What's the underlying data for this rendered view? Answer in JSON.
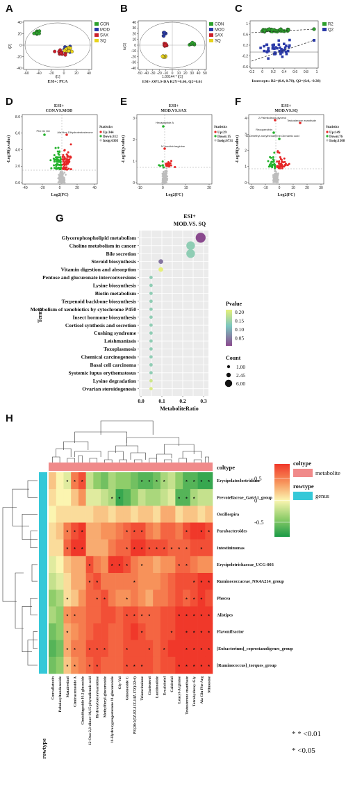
{
  "panels": {
    "A": {
      "label": "A",
      "xlabel": "t[1]",
      "ylabel": "t[2]",
      "footer": "ESI+: PCA",
      "yticks": [
        "40",
        "20",
        "0",
        "-20",
        "-40"
      ],
      "xticks": [
        "-60",
        "-40",
        "-20",
        "0",
        "20",
        "40"
      ],
      "legend": [
        {
          "name": "CON",
          "color": "#2ca02c"
        },
        {
          "name": "MOD",
          "color": "#2b3aa8"
        },
        {
          "name": "SAX",
          "color": "#cc1f2a"
        },
        {
          "name": "SQ",
          "color": "#e8d31a"
        }
      ]
    },
    "B": {
      "label": "B",
      "xlabel": "1.00144 * t[1]",
      "ylabel": "to[1]",
      "footer": "ESI+:OPLS-DA   R2Y=0.66, Q2=0.61",
      "yticks": [
        "40",
        "30",
        "20",
        "10",
        "0",
        "-10",
        "-20",
        "-30",
        "-40"
      ],
      "xticks": [
        "-50",
        "-40",
        "-30",
        "-20",
        "-10",
        "0",
        "10",
        "20",
        "30",
        "40",
        "50"
      ],
      "legend": [
        {
          "name": "CON",
          "color": "#2ca02c"
        },
        {
          "name": "MOD",
          "color": "#2b3aa8"
        },
        {
          "name": "SAX",
          "color": "#cc1f2a"
        },
        {
          "name": "SQ",
          "color": "#e8d31a"
        }
      ]
    },
    "C": {
      "label": "C",
      "footer": "Intercepts: R2=(0.0, 0.70), Q2=(0.0, -0.38)",
      "yticks": [
        "1",
        "0.6",
        "0.2",
        "-0.2",
        "-0.6"
      ],
      "xticks": [
        "-0.2",
        "0",
        "0.2",
        "0.4",
        "0.6",
        "0.8",
        "1"
      ],
      "legend": [
        {
          "name": "R2",
          "color": "#2ca02c"
        },
        {
          "name": "Q2",
          "color": "#2b3aa8"
        }
      ]
    },
    "D": {
      "label": "D",
      "title1": "ESI+",
      "title2": "CON.VS.MOD",
      "xlabel": "Log2(FC)",
      "ylabel": "-Log10(p.value)",
      "yticks": [
        "8.0",
        "6.0",
        "4.0",
        "2.0",
        "0.0"
      ],
      "xticks": [
        "-40",
        "-20",
        "0",
        "20",
        "40"
      ],
      "annotations": [
        "Phe Ile Val",
        "Ala-Hex-Dihydrotestosterone"
      ],
      "stats_title": "Statistics",
      "stats": [
        "Up:344",
        "Down:312",
        "Insig:6303"
      ]
    },
    "E": {
      "label": "E",
      "title1": "ESI+",
      "title2": "MOD.VS.SAX",
      "xlabel": "Log2(FC)",
      "ylabel": "-Log10(p.value)",
      "yticks": [
        "3",
        "2",
        "1",
        "0"
      ],
      "xticks": [
        "-10",
        "0",
        "10",
        "20"
      ],
      "annotations": [
        "Hexapeptide A",
        "N'-Isocitrin/arginine"
      ],
      "stats_title": "Statistics",
      "stats": [
        "Up:29",
        "Down:15",
        "Insig:6731"
      ]
    },
    "F": {
      "label": "F",
      "title1": "ESI+",
      "title2": "MOD.VS.SQ",
      "xlabel": "Log2(FC)",
      "ylabel": "-Log10(p.value)",
      "yticks": [
        "4",
        "3",
        "2",
        "1",
        "0"
      ],
      "xticks": [
        "-20",
        "-10",
        "0",
        "10",
        "20",
        "30"
      ],
      "annotations": [
        "2-Palmitoleoyl-glycerol",
        "Testosterone enanthate",
        "Reoquercitrin",
        "11-Dimethyl-nonylhexatriene-Ginnamic acid"
      ],
      "stats_title": "Statistics",
      "stats": [
        "Up:149",
        "Down:76",
        "Insig:1508"
      ]
    }
  },
  "chart_data": [
    {
      "type": "scatter",
      "panel": "G",
      "title": "ESI+",
      "subtitle": "MOD.VS. SQ",
      "xlabel": "MetaboliteRatio",
      "ylabel": "Terms",
      "xticks": [
        "0.0",
        "0.1",
        "0.2",
        "0.3"
      ],
      "xlim": [
        0,
        0.3
      ],
      "categories": [
        "Glycerophospholipid metabolism",
        "Choline metabolism in cancer",
        "Bile secretion",
        "Steroid biosynthesis",
        "Vitamin digestion and absorption",
        "Pentose and glucuronate interconversions",
        "Lysine biosynthesis",
        "Biotin metabolism",
        "Terpenoid backbone biosynthesis",
        "Metabolism of xenobiotics by cytochrome P450",
        "Insect hormone biosynthesis",
        "Cortisol synthesis and secretion",
        "Cushing syndrome",
        "Leishmaniasis",
        "Toxoplasmosis",
        "Chemical carcinogenesis",
        "Basal cell carcinoma",
        "Systemic lupus erythematosus",
        "Lysine degradation",
        "Ovarian steroidogenesis"
      ],
      "ratio": [
        0.286,
        0.238,
        0.238,
        0.095,
        0.095,
        0.048,
        0.048,
        0.048,
        0.048,
        0.048,
        0.048,
        0.048,
        0.048,
        0.048,
        0.048,
        0.048,
        0.048,
        0.048,
        0.048,
        0.048
      ],
      "count": [
        6,
        5,
        5,
        2,
        2,
        1,
        1,
        1,
        1,
        1,
        1,
        1,
        1,
        1,
        1,
        1,
        1,
        1,
        1,
        1
      ],
      "pvalue": [
        0.05,
        0.15,
        0.15,
        0.08,
        0.22,
        0.15,
        0.15,
        0.15,
        0.15,
        0.15,
        0.15,
        0.15,
        0.15,
        0.15,
        0.15,
        0.15,
        0.15,
        0.15,
        0.2,
        0.21
      ],
      "pvalue_legend_title": "Pvalue",
      "pvalue_legend_ticks": [
        "0.20",
        "0.15",
        "0.10",
        "0.05"
      ],
      "count_legend_title": "Count",
      "count_legend_ticks": [
        "1.00",
        "2.45",
        "6.00"
      ],
      "grid": true
    },
    {
      "type": "heatmap",
      "panel": "H",
      "rows": [
        "Erysipelatoclostridium",
        "Prevotellaceae_Ga6A1_group",
        "Oscillospira",
        "Parabacteroides",
        "Intestinimonas",
        "Erysipelotrichaceae_UCG-003",
        "Ruminococcaceae_NK4A214_group",
        "Phocea",
        "Alistipes",
        "Flavonifractor",
        "[Eubacterium]_coprostanoligenes_group",
        "[Ruminococcus]_torques_group"
      ],
      "columns": [
        "Convallatoxin",
        "Pabulosyltandaroside",
        "Matairesinol",
        "Cimiracemoside A",
        "Cimicifugoside H-2 glucoside",
        "12-Oxo-2,3-dinor-10,15-phytodienoic acid",
        "Hydroxybutyrylcarnitine",
        "Methylfuryl-glucuronide",
        "11-Hydroxyprogesterone 11-glucuronide",
        "Gly-Val",
        "Ginsenoside C",
        "PE(20:5(5Z,8Z,11Z,14Z,17Z)/22:6)",
        "Triamcinolone",
        "Cholesterol",
        "Lucidenolide",
        "Ercalcitriol",
        "Calcitriol",
        "Leucyl-Arginine",
        "Testosterone enanthate",
        "Tetrahydroxy-Gly",
        "Ala Glu Phe Arg",
        "Mimosine"
      ],
      "values": [
        [
          0.2,
          0.0,
          -0.1,
          0.5,
          0.7,
          -0.2,
          -0.4,
          -0.5,
          -0.3,
          -0.4,
          -0.4,
          -0.5,
          -0.6,
          -0.6,
          -0.5,
          -0.3,
          -0.2,
          -0.4,
          -0.6,
          -0.6,
          -0.7,
          -0.7
        ],
        [
          0.1,
          0.0,
          0.0,
          0.2,
          0.4,
          -0.1,
          -0.1,
          -0.2,
          -0.3,
          -0.7,
          -0.6,
          -0.4,
          -0.2,
          -0.3,
          -0.3,
          -0.2,
          -0.1,
          -0.6,
          -0.6,
          -0.3,
          -0.2,
          -0.2
        ],
        [
          0.0,
          0.1,
          0.1,
          0.1,
          0.1,
          0.1,
          0.2,
          0.2,
          0.1,
          0.2,
          0.2,
          0.1,
          0.2,
          0.2,
          0.1,
          0.3,
          0.3,
          0.1,
          0.2,
          0.2,
          0.1,
          0.2
        ],
        [
          0.1,
          0.2,
          0.5,
          0.7,
          0.8,
          0.3,
          0.3,
          0.4,
          0.4,
          0.5,
          0.6,
          0.7,
          0.7,
          0.5,
          0.4,
          0.6,
          0.6,
          0.5,
          0.7,
          0.8,
          0.8,
          0.7
        ],
        [
          0.1,
          0.1,
          0.6,
          0.8,
          0.8,
          0.3,
          0.3,
          0.3,
          0.5,
          0.6,
          0.6,
          0.8,
          0.8,
          0.7,
          0.7,
          0.7,
          0.6,
          0.6,
          0.6,
          0.7,
          0.7,
          0.7
        ],
        [
          -0.1,
          0.0,
          0.2,
          0.3,
          0.3,
          0.7,
          0.5,
          0.4,
          0.8,
          0.8,
          0.7,
          0.5,
          0.4,
          0.4,
          0.3,
          0.4,
          0.4,
          0.6,
          0.6,
          0.5,
          0.4,
          0.4
        ],
        [
          -0.2,
          -0.1,
          0.1,
          0.3,
          0.3,
          0.6,
          0.7,
          0.5,
          0.5,
          0.5,
          0.5,
          0.5,
          0.4,
          0.4,
          0.4,
          0.5,
          0.6,
          0.7,
          0.7,
          0.7,
          0.8,
          0.8
        ],
        [
          -0.4,
          -0.3,
          0.1,
          0.2,
          0.4,
          0.6,
          0.6,
          0.7,
          0.5,
          0.4,
          0.4,
          0.5,
          0.4,
          0.3,
          0.5,
          0.5,
          0.6,
          0.7,
          0.6,
          0.7,
          0.8,
          0.7
        ],
        [
          -0.3,
          -0.4,
          0.4,
          0.5,
          0.5,
          0.6,
          0.6,
          0.7,
          0.7,
          0.6,
          0.7,
          0.7,
          0.6,
          0.6,
          0.6,
          0.7,
          0.7,
          0.8,
          0.8,
          0.8,
          0.8,
          0.8
        ],
        [
          -0.5,
          -0.4,
          0.3,
          0.4,
          0.5,
          0.6,
          0.7,
          0.7,
          0.6,
          0.6,
          0.7,
          0.8,
          0.7,
          0.6,
          0.6,
          0.7,
          0.7,
          0.8,
          0.8,
          0.8,
          0.8,
          0.8
        ],
        [
          -0.6,
          -0.5,
          0.3,
          0.5,
          0.5,
          0.7,
          0.7,
          0.7,
          0.6,
          0.6,
          0.7,
          0.7,
          0.7,
          0.7,
          0.6,
          0.7,
          0.8,
          0.8,
          0.8,
          0.8,
          0.8,
          0.8
        ],
        [
          -0.5,
          -0.4,
          0.2,
          0.4,
          0.5,
          0.6,
          0.7,
          0.6,
          0.6,
          0.6,
          0.7,
          0.7,
          0.7,
          0.7,
          0.6,
          0.7,
          0.7,
          0.8,
          0.8,
          0.8,
          0.8,
          0.8
        ]
      ],
      "stars": [
        [
          "",
          "",
          "*",
          "*",
          "*",
          "",
          "",
          "",
          "",
          "",
          "",
          "",
          "*",
          "*",
          "*",
          "*",
          "",
          "",
          "*",
          "*",
          "*",
          "*"
        ],
        [
          "",
          "",
          "",
          "",
          "",
          "",
          "",
          "",
          "*",
          "*",
          "",
          "",
          "",
          "",
          "",
          "",
          "",
          "*",
          "*",
          "*",
          "",
          ""
        ],
        [
          "",
          "",
          "",
          "",
          "",
          "",
          "",
          "",
          "",
          "",
          "",
          "",
          "",
          "",
          "",
          "",
          "",
          "",
          "",
          "",
          "",
          ""
        ],
        [
          "",
          "",
          "*",
          "*",
          "*",
          "",
          "",
          "",
          "",
          "",
          "*",
          "*",
          "*",
          "",
          "",
          "",
          "",
          "",
          "*",
          "",
          "*",
          "*"
        ],
        [
          "",
          "",
          "*",
          "*",
          "*",
          "",
          "",
          "",
          "",
          "",
          "*",
          "*",
          "*",
          "*",
          "*",
          "*",
          "*",
          "*",
          "*",
          "",
          "*",
          ""
        ],
        [
          "",
          "",
          "",
          "",
          "",
          "*",
          "",
          "",
          "*",
          "*",
          "*",
          "",
          "*",
          "",
          "",
          "",
          "",
          "*",
          "*",
          "",
          "",
          ""
        ],
        [
          "",
          "",
          "",
          "",
          "",
          "*",
          "*",
          "",
          "",
          "",
          "",
          "*",
          "",
          "",
          "",
          "",
          "",
          "",
          "",
          "*",
          "*",
          "*"
        ],
        [
          "",
          "",
          "*",
          "",
          "",
          "",
          "*",
          "*",
          "",
          "",
          "*",
          "",
          "",
          "",
          "",
          "",
          "",
          "",
          "*",
          "*",
          "*",
          ""
        ],
        [
          "",
          "",
          "*",
          "*",
          "",
          "",
          "",
          "",
          "",
          "",
          "*",
          "*",
          "*",
          "*",
          "",
          "",
          "",
          "*",
          "*",
          "*",
          "*",
          "*"
        ],
        [
          "",
          "",
          "*",
          "",
          "",
          "",
          "",
          "",
          "",
          "",
          "",
          "",
          "*",
          "",
          "",
          "",
          "*",
          "",
          "*",
          "*",
          "*",
          "*"
        ],
        [
          "",
          "",
          "*",
          "*",
          "",
          "*",
          "*",
          "*",
          "",
          "",
          "*",
          "",
          "",
          "*",
          "",
          "*",
          "",
          "",
          "*",
          "*",
          "*",
          "*"
        ],
        [
          "",
          "",
          "*",
          "*",
          "",
          "*",
          "*",
          "",
          "",
          "",
          "*",
          "*",
          "*",
          "",
          "",
          "",
          "",
          "*",
          "*",
          "*",
          "*",
          "*"
        ]
      ],
      "coltype_title": "coltype",
      "coltype_value": "metabolite",
      "coltype_color": "#f08a8a",
      "rowtype_title": "rowtype",
      "rowtype_value": "genus",
      "rowtype_color": "#35c8d8",
      "color_scale_ticks": [
        "0.5",
        "0",
        "-0.5"
      ],
      "sig_legend": [
        "* * <0.01",
        "*   <0.05"
      ],
      "top_label": "coltype",
      "side_label": "rowtype"
    }
  ],
  "labels": {
    "G": "G",
    "H": "H"
  }
}
